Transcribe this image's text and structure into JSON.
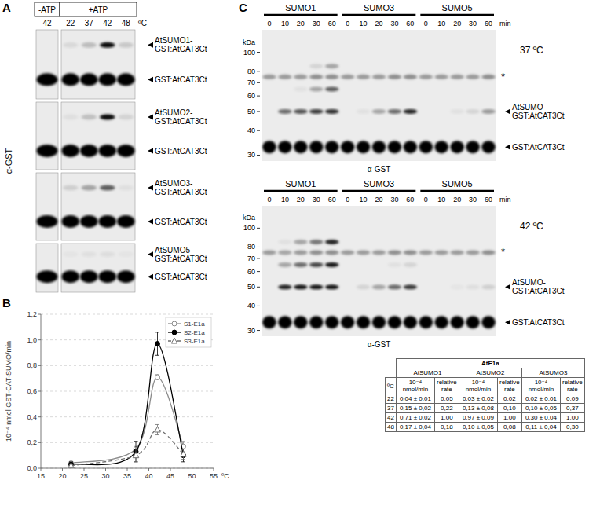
{
  "panel_a": {
    "label": "A",
    "header_minus": "-ATP",
    "header_plus": "+ATP",
    "temps_minus": [
      "42"
    ],
    "temps_plus": [
      "22",
      "37",
      "42",
      "48"
    ],
    "unit": "ºC",
    "antibody": "α-GST",
    "blots": [
      {
        "product_label": [
          "AtSUMO1-",
          "GST:AtCAT3Ct"
        ],
        "substrate_label": "GST:AtCAT3Ct",
        "product": [
          0,
          0.08,
          0.2,
          0.95,
          0.15
        ],
        "substrate": [
          1,
          1,
          1,
          1,
          1
        ]
      },
      {
        "product_label": [
          "AtSUMO2-",
          "GST:AtCAT3Ct"
        ],
        "substrate_label": "GST:AtCAT3Ct",
        "product": [
          0,
          0.05,
          0.18,
          0.95,
          0.1
        ],
        "substrate": [
          1,
          1,
          1,
          1,
          1
        ]
      },
      {
        "product_label": [
          "AtSUMO3-",
          "GST:AtCAT3Ct"
        ],
        "substrate_label": "GST:AtCAT3Ct",
        "product": [
          0,
          0.12,
          0.3,
          0.6,
          0.05
        ],
        "substrate": [
          1,
          1,
          1,
          1,
          1
        ]
      },
      {
        "product_label": [
          "AtSUMO5-",
          "GST:AtCAT3Ct"
        ],
        "substrate_label": "GST:AtCAT3Ct",
        "product": [
          0,
          0.03,
          0.05,
          0.06,
          0.03
        ],
        "substrate": [
          1,
          1,
          1,
          1,
          1
        ]
      }
    ]
  },
  "panel_b": {
    "label": "B"
  },
  "chart_data": {
    "type": "line",
    "x_label": "ºC",
    "y_label": "10⁻⁴ nmol GST-CAT-SUMO/min",
    "x": [
      22,
      37,
      42,
      48
    ],
    "series": [
      {
        "name": "S1-E1a",
        "color": "#8c8c8c",
        "marker": "circle-open",
        "line_style": "solid",
        "values": [
          0.04,
          0.15,
          0.71,
          0.17
        ],
        "errors": [
          0.01,
          0.02,
          0.02,
          0.04
        ]
      },
      {
        "name": "S2-E1a",
        "color": "#000000",
        "marker": "circle",
        "line_style": "solid",
        "values": [
          0.03,
          0.13,
          0.97,
          0.1
        ],
        "errors": [
          0.02,
          0.08,
          0.09,
          0.05
        ]
      },
      {
        "name": "S3-E1a",
        "color": "#6e6e6e",
        "marker": "triangle",
        "line_style": "dashed",
        "values": [
          0.02,
          0.1,
          0.3,
          0.11
        ],
        "errors": [
          0.01,
          0.05,
          0.04,
          0.04
        ]
      }
    ],
    "xlim": [
      15,
      55
    ],
    "xticks": [
      15,
      20,
      25,
      30,
      35,
      40,
      45,
      50,
      55
    ],
    "ylim": [
      0,
      1.2
    ],
    "yticks": [
      {
        "value": 0,
        "label": "0,0"
      },
      {
        "value": 0.2,
        "label": "0,2"
      },
      {
        "value": 0.4,
        "label": "0,4"
      },
      {
        "value": 0.6,
        "label": "0,6"
      },
      {
        "value": 0.8,
        "label": "0,8"
      },
      {
        "value": 1.0,
        "label": "1,0"
      },
      {
        "value": 1.2,
        "label": "1,2"
      }
    ],
    "grid": true,
    "legend": "top-right"
  },
  "panel_c": {
    "label": "C",
    "groups": [
      "SUMO1",
      "SUMO3",
      "SUMO5"
    ],
    "times": [
      "0",
      "10",
      "20",
      "30",
      "60"
    ],
    "time_unit": "min",
    "kda_label": "kDa",
    "antibody": "α-GST",
    "kda_lim": [
      130,
      28
    ],
    "kda_ticks": [
      100,
      80,
      70,
      60,
      50,
      40,
      30
    ],
    "blots": [
      {
        "temperature": "37 ºC",
        "bands": [
          {
            "label": [
              "*"
            ],
            "kda": 75,
            "intensity": [
              0.35,
              0.35,
              0.35,
              0.4,
              0.4,
              0.35,
              0.35,
              0.35,
              0.4,
              0.4,
              0.35,
              0.35,
              0.35,
              0.35,
              0.4
            ]
          },
          {
            "kda": 85,
            "intensity": [
              0,
              0,
              0,
              0.1,
              0.3,
              0,
              0,
              0,
              0,
              0,
              0,
              0,
              0,
              0,
              0
            ]
          },
          {
            "kda": 65,
            "intensity": [
              0,
              0,
              0.05,
              0.3,
              0.6,
              0,
              0,
              0,
              0,
              0,
              0,
              0,
              0,
              0,
              0
            ]
          },
          {
            "label": [
              "AtSUMO-",
              "GST:AtCAT3Ct"
            ],
            "kda": 50,
            "intensity": [
              0,
              0.55,
              0.65,
              0.75,
              0.8,
              0,
              0.05,
              0.3,
              0.55,
              0.85,
              0,
              0,
              0.05,
              0.1,
              0.35
            ]
          },
          {
            "label": [
              "GST:AtCAT3Ct"
            ],
            "kda": 33,
            "intensity": [
              1,
              1,
              1,
              1,
              1,
              1,
              1,
              1,
              1,
              1,
              1,
              1,
              1,
              1,
              1
            ]
          }
        ]
      },
      {
        "temperature": "42 ºC",
        "bands": [
          {
            "label": [
              "*"
            ],
            "kda": 75,
            "intensity": [
              0.35,
              0.3,
              0.35,
              0.4,
              0.4,
              0.35,
              0.35,
              0.35,
              0.4,
              0.4,
              0.35,
              0.35,
              0.35,
              0.35,
              0.4
            ]
          },
          {
            "kda": 85,
            "intensity": [
              0,
              0.05,
              0.3,
              0.5,
              0.85,
              0,
              0,
              0,
              0,
              0,
              0,
              0,
              0,
              0,
              0
            ]
          },
          {
            "kda": 65,
            "intensity": [
              0,
              0.3,
              0.55,
              0.7,
              0.9,
              0,
              0,
              0,
              0.05,
              0.1,
              0,
              0,
              0,
              0,
              0
            ]
          },
          {
            "label": [
              "AtSUMO-",
              "GST:AtCAT3Ct"
            ],
            "kda": 50,
            "intensity": [
              0,
              0.85,
              0.9,
              0.9,
              0.9,
              0,
              0.1,
              0.3,
              0.55,
              0.75,
              0,
              0,
              0.03,
              0.06,
              0.12
            ]
          },
          {
            "label": [
              "GST:AtCAT3Ct"
            ],
            "kda": 33,
            "intensity": [
              1,
              1,
              1,
              1,
              1,
              1,
              1,
              1,
              1,
              1,
              1,
              1,
              1,
              1,
              1
            ]
          }
        ]
      }
    ]
  },
  "table": {
    "title": "AtE1a",
    "groups": [
      "AtSUMO1",
      "AtSUMO2",
      "AtSUMO3"
    ],
    "temp_header": "ºC",
    "sub_headers": [
      "10⁻⁴ nmol/min",
      "relative rate"
    ],
    "rows": [
      [
        "22",
        "0,04 ± 0,01",
        "0,05",
        "0,03 ± 0,02",
        "0,02",
        "0,02 ± 0,01",
        "0,09"
      ],
      [
        "37",
        "0,15 ± 0,02",
        "0,22",
        "0,13 ± 0,08",
        "0,10",
        "0,10 ± 0,05",
        "0,37"
      ],
      [
        "42",
        "0,71 ± 0,02",
        "1,00",
        "0,97 ± 0,09",
        "1,00",
        "0,30 ± 0,04",
        "1,00"
      ],
      [
        "48",
        "0,17 ± 0,04",
        "0,18",
        "0,10 ± 0,05",
        "0,08",
        "0,11 ± 0,04",
        "0,30"
      ]
    ]
  }
}
